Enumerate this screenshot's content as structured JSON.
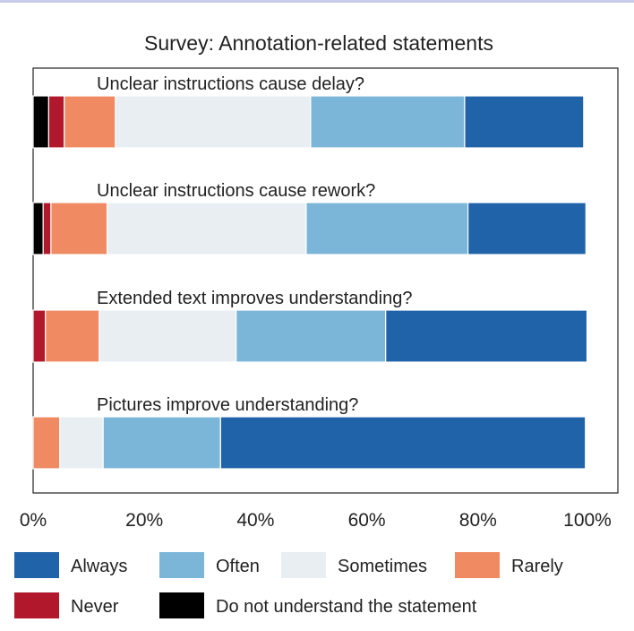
{
  "chart_data": {
    "type": "bar",
    "orientation": "horizontal",
    "stacked": true,
    "title": "Survey: Annotation-related statements",
    "xlabel": "",
    "ylabel": "",
    "xlim": [
      0,
      100
    ],
    "x_ticks": [
      "0%",
      "20%",
      "40%",
      "60%",
      "80%",
      "100%"
    ],
    "x_tick_values": [
      0,
      20,
      40,
      60,
      80,
      100
    ],
    "grid": false,
    "legend_position": "bottom",
    "categories": [
      "Unclear instructions cause delay?",
      "Unclear instructions cause rework?",
      "Extended text improves understanding?",
      "Pictures improve understanding?"
    ],
    "series": [
      {
        "name": "Do not understand the statement",
        "color": "#000000",
        "values": [
          2.8,
          1.8,
          0,
          0
        ]
      },
      {
        "name": "Never",
        "color": "#b2182b",
        "values": [
          2.8,
          1.4,
          2.2,
          0
        ]
      },
      {
        "name": "Rarely",
        "color": "#ef8a62",
        "values": [
          9.2,
          10.1,
          9.7,
          4.8
        ]
      },
      {
        "name": "Sometimes",
        "color": "#e8eef2",
        "values": [
          35.1,
          35.8,
          24.6,
          7.8
        ]
      },
      {
        "name": "Often",
        "color": "#7bb6d9",
        "values": [
          27.7,
          29.1,
          26.9,
          21.1
        ]
      },
      {
        "name": "Always",
        "color": "#2063a9",
        "values": [
          21.4,
          21.2,
          36.2,
          65.6
        ]
      }
    ],
    "legend": [
      {
        "name": "Always",
        "color": "#2063a9"
      },
      {
        "name": "Often",
        "color": "#7bb6d9"
      },
      {
        "name": "Sometimes",
        "color": "#e8eef2"
      },
      {
        "name": "Rarely",
        "color": "#ef8a62"
      },
      {
        "name": "Never",
        "color": "#b2182b"
      },
      {
        "name": "Do not understand the statement",
        "color": "#000000"
      }
    ]
  }
}
